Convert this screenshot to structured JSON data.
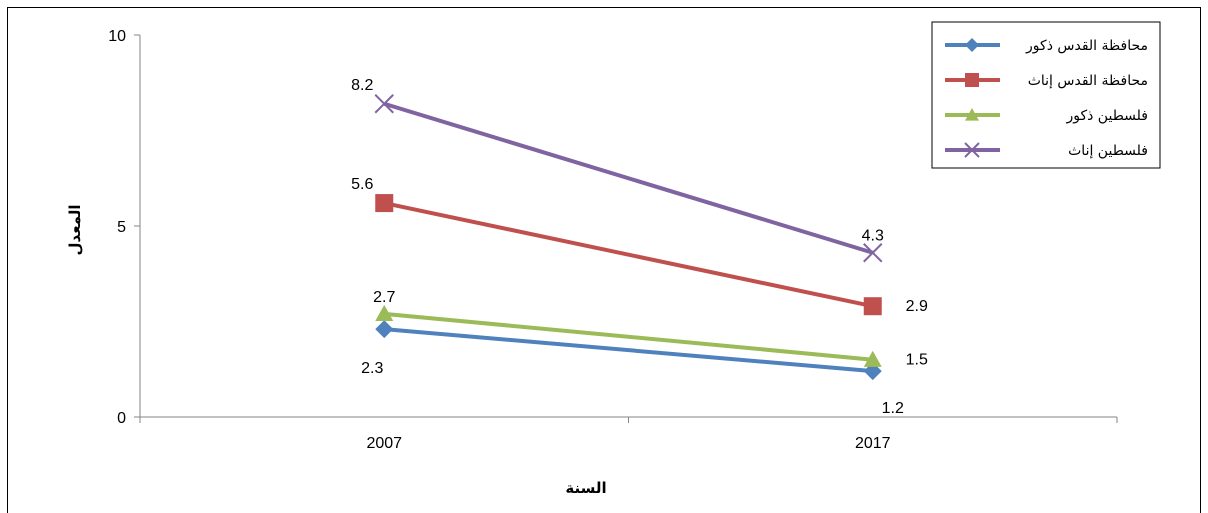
{
  "chart_data": {
    "type": "line",
    "categories": [
      "2007",
      "2017"
    ],
    "series": [
      {
        "name": "محافظة القدس ذكور",
        "values": [
          2.3,
          1.2
        ],
        "color": "#4f81bd",
        "marker": "diamond"
      },
      {
        "name": "محافظة القدس إناث",
        "values": [
          5.6,
          2.9
        ],
        "color": "#c0504d",
        "marker": "square"
      },
      {
        "name": "فلسطين ذكور",
        "values": [
          2.7,
          1.5
        ],
        "color": "#9bbb59",
        "marker": "triangle"
      },
      {
        "name": "فلسطين إناث",
        "values": [
          8.2,
          4.3
        ],
        "color": "#8064a2",
        "marker": "x"
      }
    ],
    "data_labels": [
      {
        "series": 0,
        "point": 0,
        "text": "2.3",
        "placement": "below-left"
      },
      {
        "series": 0,
        "point": 1,
        "text": "1.2",
        "placement": "below"
      },
      {
        "series": 1,
        "point": 0,
        "text": "5.6",
        "placement": "above-left"
      },
      {
        "series": 1,
        "point": 1,
        "text": "2.9",
        "placement": "right"
      },
      {
        "series": 2,
        "point": 0,
        "text": "2.7",
        "placement": "above"
      },
      {
        "series": 2,
        "point": 1,
        "text": "1.5",
        "placement": "right"
      },
      {
        "series": 3,
        "point": 0,
        "text": "8.2",
        "placement": "above-left"
      },
      {
        "series": 3,
        "point": 1,
        "text": "4.3",
        "placement": "above"
      }
    ],
    "yticks": [
      0,
      5,
      10
    ],
    "ylim": [
      0,
      10
    ],
    "xlabel": "السنة",
    "ylabel": "المعدل",
    "grid": false,
    "legend_position": "top-right"
  }
}
